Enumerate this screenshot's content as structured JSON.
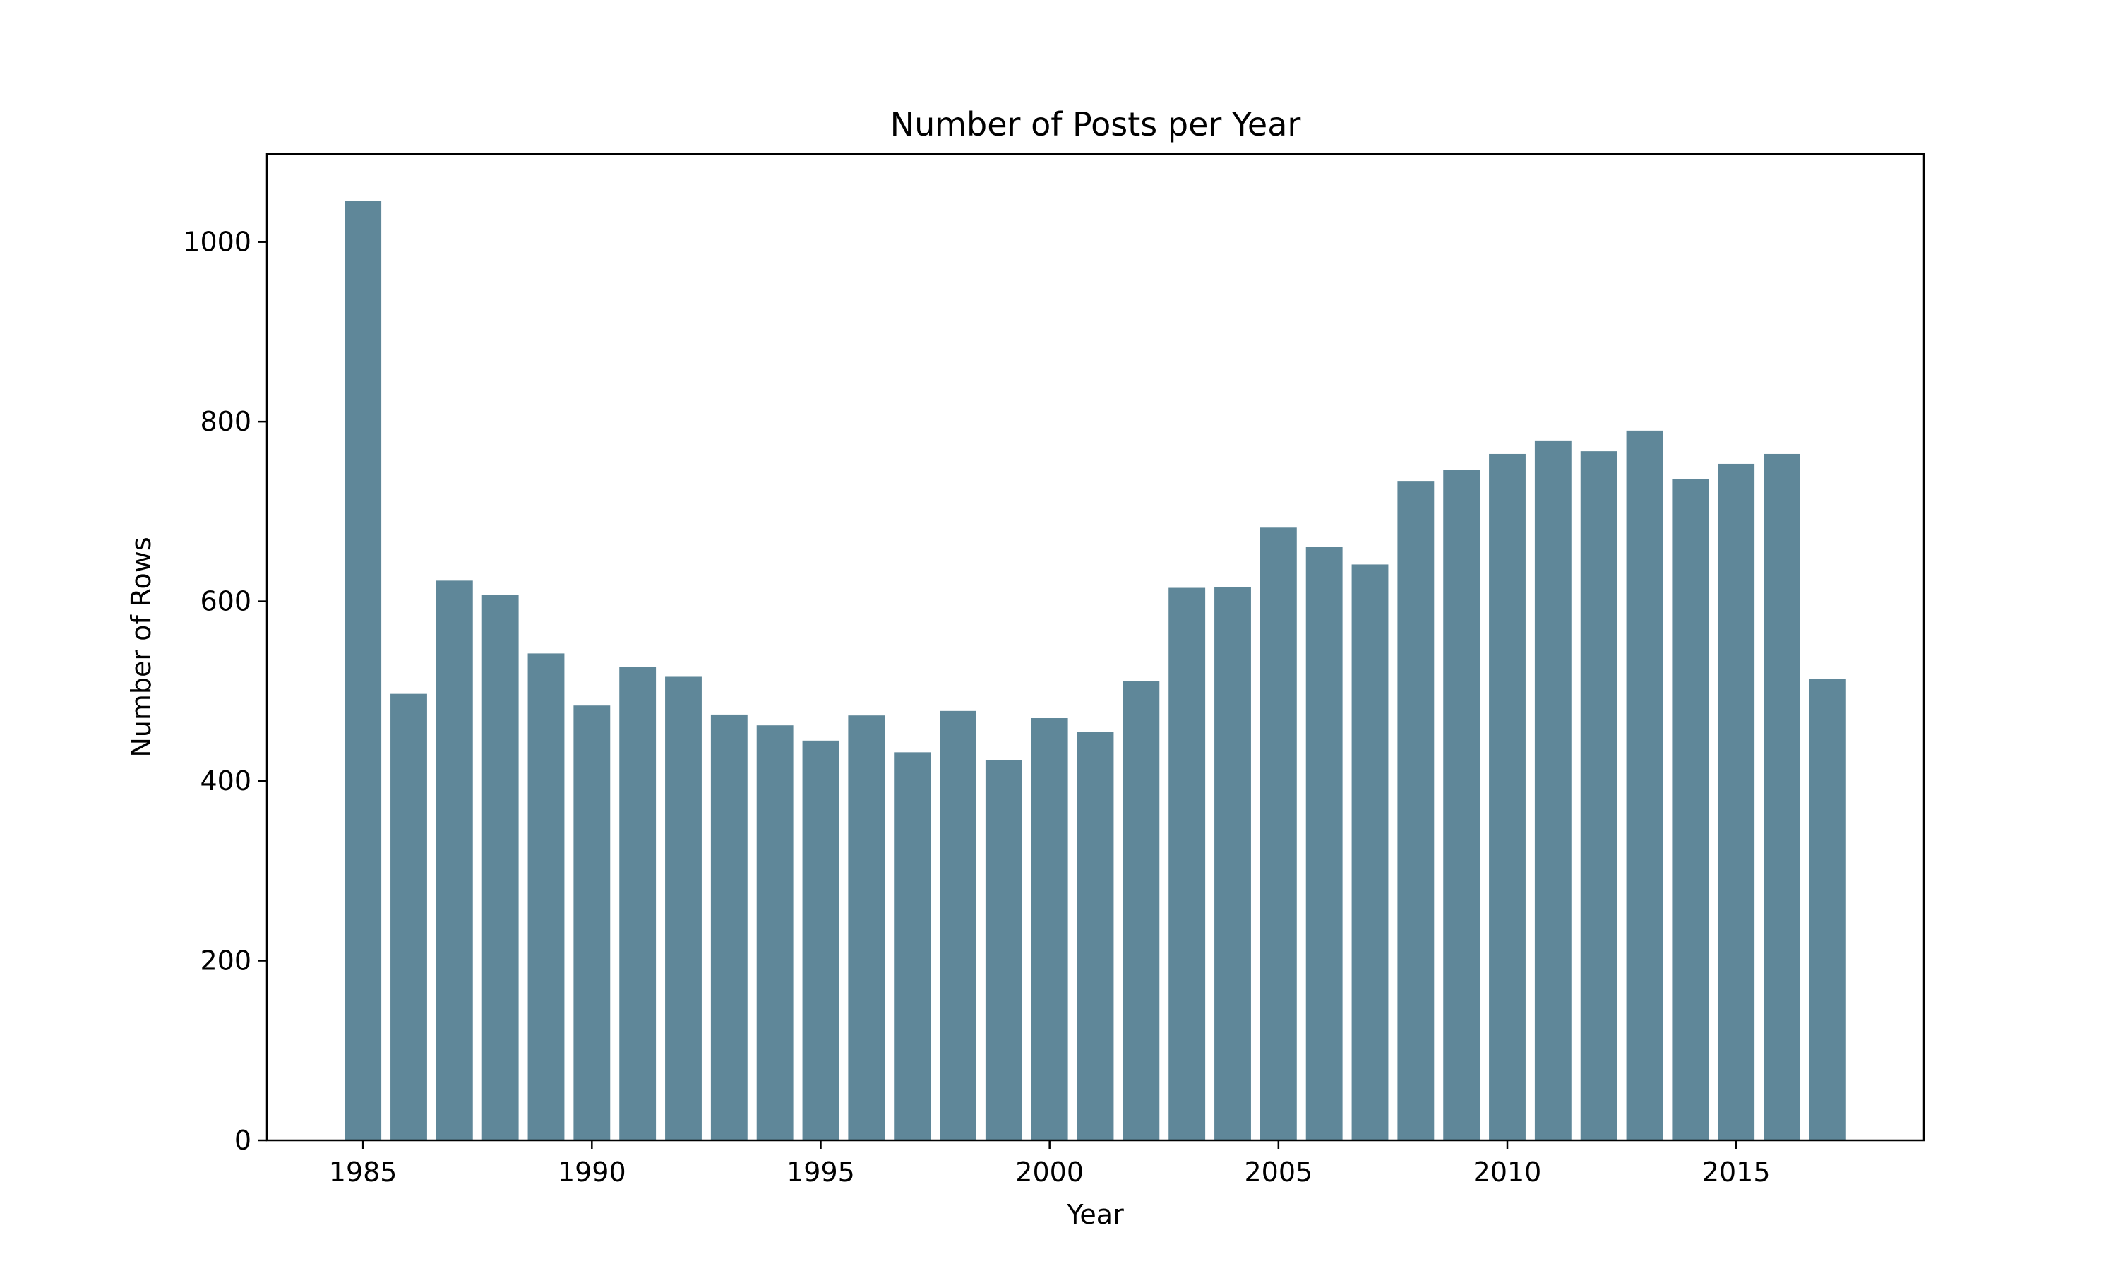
{
  "chart_data": {
    "type": "bar",
    "title": "Number of Posts per Year",
    "xlabel": "Year",
    "ylabel": "Number of Rows",
    "categories": [
      1985,
      1986,
      1987,
      1988,
      1989,
      1990,
      1991,
      1992,
      1993,
      1994,
      1995,
      1996,
      1997,
      1998,
      1999,
      2000,
      2001,
      2002,
      2003,
      2004,
      2005,
      2006,
      2007,
      2008,
      2009,
      2010,
      2011,
      2012,
      2013,
      2014,
      2015,
      2016,
      2017
    ],
    "values": [
      1046,
      497,
      623,
      607,
      542,
      484,
      527,
      516,
      474,
      462,
      445,
      473,
      432,
      478,
      423,
      470,
      455,
      511,
      615,
      616,
      682,
      661,
      641,
      734,
      746,
      764,
      779,
      767,
      790,
      736,
      753,
      764,
      514
    ],
    "xlim": [
      1982.9,
      2019.1
    ],
    "ylim": [
      0,
      1098
    ],
    "xticks": [
      1985,
      1990,
      1995,
      2000,
      2005,
      2010,
      2015
    ],
    "xtick_labels": [
      "1985",
      "1990",
      "1995",
      "2000",
      "2005",
      "2010",
      "2015"
    ],
    "yticks": [
      0,
      200,
      400,
      600,
      800,
      1000
    ],
    "ytick_labels": [
      "0",
      "200",
      "400",
      "600",
      "800",
      "1000"
    ],
    "bar_color": "#5f8799",
    "grid": false,
    "legend": "none"
  }
}
